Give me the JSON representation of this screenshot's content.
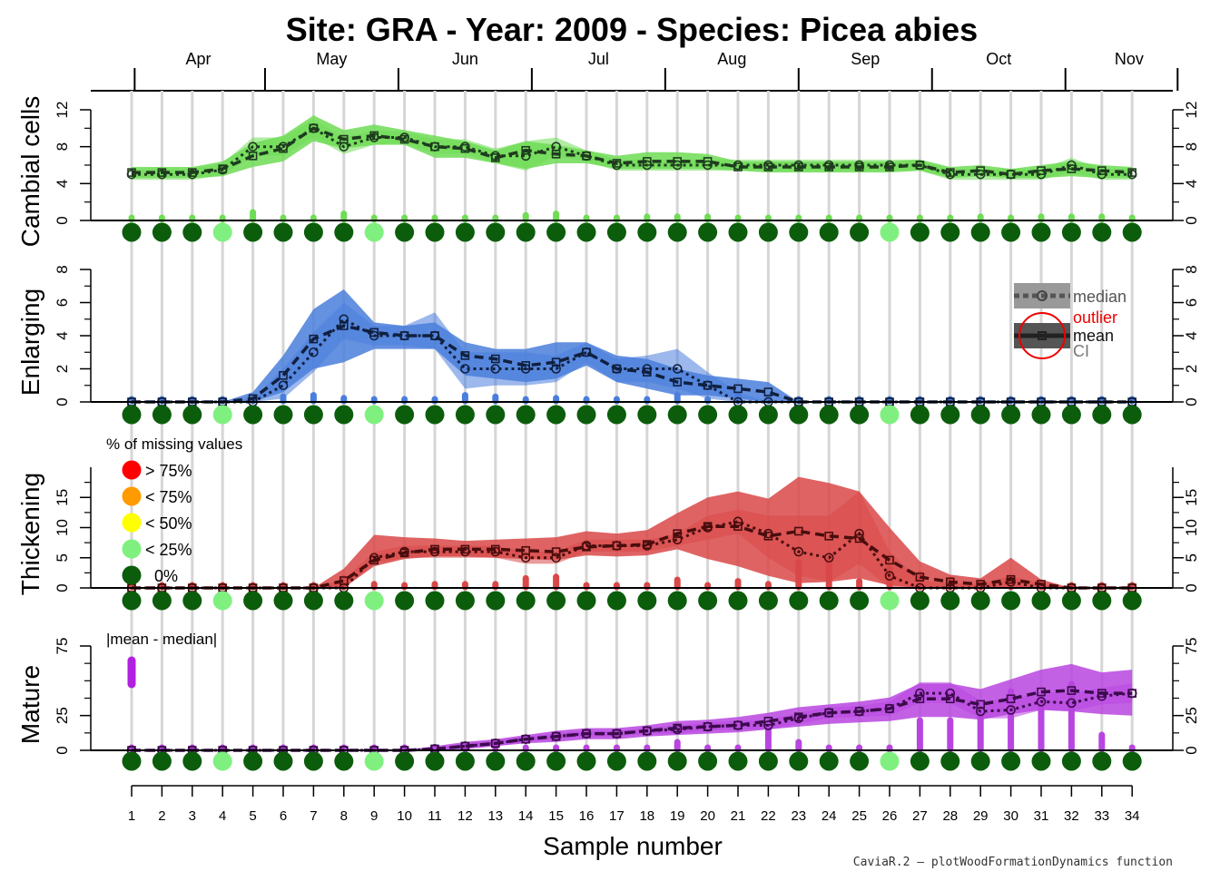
{
  "title": "Site: GRA - Year: 2009 - Species: Picea abies",
  "xlabel": "Sample number",
  "footer": "CaviaR.2 — plotWoodFormationDynamics function",
  "months": [
    "Apr",
    "May",
    "Jun",
    "Jul",
    "Aug",
    "Sep",
    "Oct",
    "Nov"
  ],
  "legend": {
    "median": "median",
    "outlier": "outlier",
    "mean": "mean",
    "ci": "CI",
    "missing_title": "% of missing values",
    "missing_items": [
      "> 75%",
      "< 75%",
      "< 50%",
      "< 25%",
      "0%"
    ],
    "mm_title": "|mean - median|"
  },
  "colors": {
    "cambial": "#6fdc55",
    "enlarging": "#4a7edc",
    "thickening": "#d94848",
    "mature": "#b845e0",
    "dark_green": "#0b5d0b",
    "light_green": "#7ff07f",
    "missing_red": "#ff0000",
    "missing_orange": "#ff9a00",
    "missing_yellow": "#ffff00",
    "outlier_red": "#ee0000",
    "mm_purple": "#b020e0"
  },
  "chart_data": {
    "type": "area",
    "x": [
      1,
      2,
      3,
      4,
      5,
      6,
      7,
      8,
      9,
      10,
      11,
      12,
      13,
      14,
      15,
      16,
      17,
      18,
      19,
      20,
      21,
      22,
      23,
      24,
      25,
      26,
      27,
      28,
      29,
      30,
      31,
      32,
      33,
      34
    ],
    "month_tick_samples": [
      1.1,
      5.4,
      9.8,
      14.2,
      18.6,
      23.0,
      27.4,
      31.8,
      35.5
    ],
    "month_label_samples": [
      3.2,
      7.6,
      12.0,
      16.4,
      20.8,
      25.2,
      29.6,
      33.9
    ],
    "missing_categories": [
      "0%",
      "0%",
      "0%",
      "< 25%",
      "0%",
      "0%",
      "0%",
      "0%",
      "< 25%",
      "0%",
      "0%",
      "0%",
      "0%",
      "0%",
      "0%",
      "0%",
      "0%",
      "0%",
      "0%",
      "0%",
      "0%",
      "0%",
      "0%",
      "0%",
      "0%",
      "< 25%",
      "0%",
      "0%",
      "0%",
      "0%",
      "0%",
      "0%",
      "0%",
      "0%"
    ],
    "panels": [
      {
        "name": "Cambial cells",
        "ylim": [
          0,
          12
        ],
        "yticks": [
          0,
          4,
          8,
          12
        ],
        "yminor": [
          2,
          6,
          10
        ],
        "mean": [
          5.2,
          5.2,
          5.2,
          5.6,
          7.0,
          7.8,
          10.0,
          8.8,
          9.2,
          8.8,
          8.0,
          7.8,
          6.8,
          7.6,
          7.2,
          7.0,
          6.2,
          6.4,
          6.4,
          6.4,
          5.8,
          5.8,
          5.8,
          5.8,
          5.8,
          5.8,
          6.0,
          5.2,
          5.4,
          5.0,
          5.4,
          5.6,
          5.4,
          5.2
        ],
        "median": [
          5.0,
          5.0,
          5.0,
          5.5,
          8.0,
          8.0,
          10.0,
          8.0,
          9.0,
          9.0,
          8.0,
          8.0,
          7.0,
          7.0,
          8.0,
          7.0,
          6.0,
          6.0,
          6.0,
          6.0,
          6.0,
          6.0,
          6.0,
          6.0,
          6.0,
          6.0,
          6.0,
          5.0,
          5.0,
          5.0,
          5.0,
          6.0,
          5.0,
          5.0
        ],
        "ci_mean_low": [
          4.6,
          4.6,
          4.6,
          4.8,
          5.8,
          6.4,
          8.6,
          7.8,
          8.2,
          8.2,
          6.8,
          6.8,
          6.2,
          5.6,
          6.2,
          6.2,
          5.6,
          5.6,
          5.6,
          5.6,
          5.4,
          5.2,
          5.2,
          5.2,
          5.2,
          5.2,
          5.4,
          4.6,
          4.8,
          4.6,
          4.6,
          4.8,
          4.6,
          4.6
        ],
        "ci_mean_high": [
          5.8,
          5.8,
          5.8,
          6.4,
          8.4,
          9.2,
          11.4,
          9.8,
          10.4,
          9.8,
          9.2,
          8.6,
          7.6,
          8.6,
          8.2,
          7.6,
          7.0,
          7.4,
          7.4,
          7.2,
          6.4,
          6.4,
          6.4,
          6.4,
          6.4,
          6.4,
          6.6,
          5.8,
          6.0,
          5.6,
          6.0,
          6.4,
          6.0,
          5.8
        ],
        "ci_median_low": [
          4.4,
          4.4,
          4.4,
          4.9,
          7.0,
          7.0,
          9.0,
          7.2,
          8.2,
          8.4,
          7.2,
          7.2,
          6.2,
          5.4,
          7.0,
          6.4,
          5.4,
          5.4,
          5.4,
          5.4,
          5.4,
          5.4,
          5.4,
          5.4,
          5.4,
          5.4,
          5.4,
          4.4,
          4.4,
          4.4,
          4.4,
          5.2,
          4.4,
          4.4
        ],
        "ci_median_high": [
          5.6,
          5.6,
          5.6,
          6.2,
          9.0,
          9.0,
          11.0,
          9.0,
          9.8,
          9.6,
          8.8,
          8.8,
          7.8,
          8.6,
          9.0,
          7.6,
          6.6,
          6.6,
          6.6,
          6.6,
          6.6,
          6.6,
          6.6,
          6.6,
          6.6,
          6.6,
          6.6,
          5.6,
          5.6,
          5.6,
          5.6,
          6.8,
          5.6,
          5.6
        ],
        "mean_median_diff": [
          0.2,
          0.2,
          0.2,
          0.1,
          1.0,
          0.2,
          0.1,
          0.8,
          0.2,
          0.2,
          0.1,
          0.2,
          0.2,
          0.6,
          0.8,
          0.1,
          0.2,
          0.4,
          0.4,
          0.4,
          0.2,
          0.2,
          0.2,
          0.2,
          0.2,
          0.2,
          0.1,
          0.2,
          0.4,
          0.1,
          0.4,
          0.4,
          0.4,
          0.2
        ]
      },
      {
        "name": "Enlarging",
        "ylim": [
          0,
          8
        ],
        "yticks": [
          0,
          2,
          4,
          6,
          8
        ],
        "yminor": [
          1,
          3,
          5,
          7
        ],
        "mean": [
          0,
          0,
          0,
          0,
          0.2,
          1.6,
          3.8,
          4.6,
          4.2,
          4.0,
          4.0,
          2.8,
          2.6,
          2.2,
          2.4,
          3.0,
          2.0,
          1.8,
          1.2,
          1.0,
          0.8,
          0.6,
          0,
          0,
          0,
          0,
          0,
          0,
          0,
          0,
          0,
          0,
          0,
          0
        ],
        "median": [
          0,
          0,
          0,
          0,
          0,
          1.0,
          3.0,
          5.0,
          4.0,
          4.0,
          4.0,
          2.0,
          2.0,
          2.0,
          2.0,
          3.0,
          2.0,
          2.0,
          2.0,
          1.0,
          0,
          0,
          0,
          0,
          0,
          0,
          0,
          0,
          0,
          0,
          0,
          0,
          0,
          0
        ],
        "ci_mean_low": [
          0,
          0,
          0,
          0,
          0,
          0.6,
          2.0,
          2.4,
          3.2,
          3.2,
          3.2,
          1.6,
          1.4,
          1.2,
          1.4,
          2.2,
          1.2,
          0.8,
          0.4,
          0.4,
          0.2,
          0,
          0,
          0,
          0,
          0,
          0,
          0,
          0,
          0,
          0,
          0,
          0,
          0
        ],
        "ci_mean_high": [
          0,
          0,
          0,
          0,
          0.6,
          2.8,
          5.6,
          6.8,
          4.8,
          4.6,
          4.8,
          3.6,
          3.2,
          3.2,
          3.6,
          3.6,
          2.8,
          2.6,
          2.0,
          1.6,
          1.4,
          1.2,
          0,
          0,
          0,
          0,
          0,
          0,
          0,
          0,
          0,
          0,
          0,
          0
        ],
        "ci_median_low": [
          0,
          0,
          0,
          0,
          0,
          0.2,
          1.8,
          3.8,
          3.4,
          3.4,
          3.2,
          0.8,
          1.0,
          1.0,
          1.2,
          2.4,
          1.2,
          1.2,
          0.8,
          0.2,
          0,
          0,
          0,
          0,
          0,
          0,
          0,
          0,
          0,
          0,
          0,
          0,
          0,
          0
        ],
        "ci_median_high": [
          0,
          0,
          0,
          0,
          0.2,
          2.0,
          4.2,
          6.0,
          4.6,
          4.6,
          5.4,
          3.0,
          3.0,
          3.0,
          2.8,
          3.6,
          2.6,
          2.8,
          3.2,
          1.8,
          0.6,
          0,
          0,
          0,
          0,
          0,
          0,
          0,
          0,
          0,
          0,
          0,
          0,
          0
        ],
        "mean_median_diff": [
          0,
          0,
          0,
          0,
          0.2,
          0.6,
          0.8,
          0.4,
          0.2,
          0,
          0,
          0.8,
          0.6,
          0.2,
          0.4,
          0,
          0,
          0.2,
          0.8,
          0,
          0.8,
          0.6,
          0,
          0,
          0,
          0,
          0,
          0,
          0,
          0,
          0,
          0,
          0,
          0
        ]
      },
      {
        "name": "Thickening",
        "ylim": [
          0,
          20
        ],
        "yticks": [
          0,
          5,
          10,
          15
        ],
        "yminor": [
          2.5,
          7.5,
          12.5,
          17.5
        ],
        "mean": [
          0,
          0,
          0,
          0,
          0,
          0,
          0,
          1.2,
          4.6,
          5.8,
          6.4,
          6.4,
          6.4,
          6.2,
          6.0,
          6.8,
          7.0,
          7.2,
          9.0,
          10.2,
          10.2,
          8.6,
          9.4,
          8.6,
          8.2,
          4.6,
          1.8,
          1.0,
          0.6,
          1.4,
          0.6,
          0,
          0,
          0
        ],
        "median": [
          0,
          0,
          0,
          0,
          0,
          0,
          0,
          0,
          5.0,
          6.0,
          6.0,
          6.0,
          6.0,
          5.0,
          5.0,
          7.0,
          7.0,
          7.0,
          8.0,
          10.0,
          11.0,
          9.0,
          6.0,
          5.0,
          9.0,
          2.0,
          0,
          0,
          0,
          1.0,
          0,
          0,
          0,
          0
        ],
        "ci_mean_low": [
          0,
          0,
          0,
          0,
          0,
          0,
          0,
          0,
          3.6,
          4.8,
          5.2,
          5.2,
          5.0,
          4.8,
          4.6,
          5.4,
          5.2,
          5.4,
          6.4,
          4.8,
          3.6,
          2.0,
          0.8,
          1.0,
          1.6,
          0.4,
          0,
          0,
          0,
          0,
          0,
          0,
          0,
          0
        ],
        "ci_mean_high": [
          0,
          0,
          0,
          0,
          0,
          0,
          0,
          3.2,
          8.8,
          8.4,
          8.2,
          7.8,
          8.0,
          8.2,
          8.4,
          9.4,
          9.0,
          9.6,
          12.4,
          15.0,
          16.0,
          14.8,
          18.4,
          17.4,
          16.0,
          10.0,
          4.4,
          2.2,
          1.6,
          5.0,
          1.4,
          0,
          0,
          0
        ],
        "ci_median_low": [
          0,
          0,
          0,
          0,
          0,
          0,
          0,
          0,
          4.0,
          5.0,
          5.0,
          5.0,
          5.0,
          4.0,
          4.0,
          6.0,
          6.0,
          6.0,
          7.0,
          8.0,
          9.0,
          5.0,
          2.0,
          1.0,
          4.0,
          0,
          0,
          0,
          0,
          0,
          0,
          0,
          0,
          0
        ],
        "ci_median_high": [
          0,
          0,
          0,
          0,
          0,
          0,
          0,
          1.4,
          6.0,
          7.0,
          7.0,
          7.0,
          7.0,
          6.0,
          6.0,
          8.0,
          8.0,
          8.0,
          9.0,
          12.0,
          13.0,
          12.0,
          12.0,
          12.0,
          16.0,
          6.0,
          1.2,
          0.8,
          0.6,
          2.0,
          0.6,
          0,
          0,
          0
        ],
        "mean_median_diff": [
          0,
          0,
          0,
          0,
          0,
          0,
          0,
          1.2,
          0.4,
          0.2,
          0.4,
          0.4,
          0.4,
          1.2,
          1.4,
          0.2,
          0,
          0.2,
          1.0,
          0.2,
          0.8,
          0.4,
          3.4,
          3.6,
          0.8,
          2.6,
          1.8,
          1.0,
          0.6,
          0.4,
          0.6,
          0,
          0,
          0
        ]
      },
      {
        "name": "Mature",
        "ylim": [
          0,
          75
        ],
        "yticks": [
          0,
          25,
          75
        ],
        "yminor": [
          12.5,
          37.5,
          50,
          62.5
        ],
        "mean": [
          0,
          0,
          0,
          0,
          0,
          0,
          0,
          0,
          0,
          0,
          1,
          3,
          5,
          8,
          10,
          12,
          12,
          14,
          16,
          17,
          18,
          21,
          24,
          27,
          28,
          30,
          37,
          37,
          33,
          37,
          42,
          43,
          41,
          41
        ],
        "median": [
          0,
          0,
          0,
          0,
          0,
          0,
          0,
          0,
          0,
          0,
          1,
          3,
          5,
          8,
          10,
          12,
          12,
          14,
          15,
          17,
          18,
          18,
          23,
          27,
          28,
          30,
          41,
          41,
          28,
          29,
          35,
          34,
          39,
          41
        ],
        "ci_mean_low": [
          0,
          0,
          0,
          0,
          0,
          0,
          0,
          0,
          0,
          0,
          0,
          1,
          3,
          5,
          6,
          8,
          8,
          10,
          11,
          12,
          13,
          15,
          17,
          19,
          20,
          21,
          24,
          24,
          22,
          26,
          29,
          28,
          26,
          25
        ],
        "ci_mean_high": [
          0,
          0,
          0,
          0,
          0,
          0,
          0,
          0,
          0,
          0,
          3,
          6,
          8,
          11,
          14,
          16,
          16,
          18,
          21,
          22,
          24,
          27,
          31,
          33,
          35,
          38,
          48,
          48,
          44,
          51,
          58,
          62,
          56,
          58
        ],
        "ci_median_low": [
          0,
          0,
          0,
          0,
          0,
          0,
          0,
          0,
          0,
          0,
          0,
          1,
          3,
          6,
          8,
          10,
          10,
          12,
          12,
          14,
          15,
          15,
          19,
          23,
          24,
          25,
          34,
          34,
          23,
          23,
          29,
          28,
          33,
          34
        ],
        "ci_median_high": [
          0,
          0,
          0,
          0,
          0,
          0,
          0,
          0,
          0,
          0,
          2,
          5,
          7,
          10,
          12,
          14,
          14,
          16,
          18,
          20,
          21,
          22,
          27,
          31,
          32,
          35,
          49,
          49,
          36,
          36,
          42,
          41,
          45,
          48
        ],
        "mean_median_diff": [
          0,
          0,
          0,
          0,
          0,
          0,
          0,
          0,
          0,
          0,
          0,
          0,
          0,
          0,
          0,
          0,
          0,
          0,
          1,
          0,
          0,
          3,
          1,
          0,
          0,
          0,
          4,
          4,
          5,
          8,
          7,
          9,
          2,
          0
        ]
      }
    ]
  }
}
